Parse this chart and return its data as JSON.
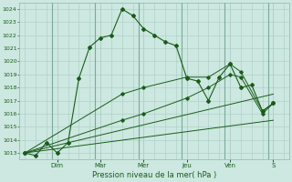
{
  "title": "Pression niveau de la mer( hPa )",
  "bg_color": "#cce8e0",
  "grid_color": "#aaccc4",
  "line_color": "#1a5c1a",
  "ylim": [
    1012.5,
    1024.5
  ],
  "yticks": [
    1013,
    1014,
    1015,
    1016,
    1017,
    1018,
    1019,
    1020,
    1021,
    1022,
    1023,
    1024
  ],
  "day_labels": [
    "Dim",
    "Mar",
    "Mer",
    "Jeu",
    "Ven",
    "S"
  ],
  "day_positions": [
    3,
    7,
    11,
    15,
    19,
    23
  ],
  "xlim": [
    -0.5,
    24.5
  ],
  "series_main": [
    [
      0,
      1013.0
    ],
    [
      1,
      1012.8
    ],
    [
      2,
      1013.8
    ],
    [
      3,
      1013.0
    ],
    [
      4,
      1013.8
    ],
    [
      5,
      1018.7
    ],
    [
      6,
      1021.1
    ],
    [
      7,
      1021.8
    ],
    [
      8,
      1022.0
    ],
    [
      9,
      1024.0
    ],
    [
      10,
      1023.5
    ],
    [
      11,
      1022.5
    ],
    [
      12,
      1022.0
    ],
    [
      13,
      1021.5
    ],
    [
      14,
      1021.2
    ],
    [
      15,
      1018.7
    ],
    [
      16,
      1018.5
    ],
    [
      17,
      1017.0
    ],
    [
      18,
      1018.8
    ],
    [
      19,
      1019.8
    ],
    [
      20,
      1018.0
    ],
    [
      21,
      1018.2
    ],
    [
      22,
      1016.2
    ],
    [
      23,
      1016.8
    ]
  ],
  "series_upper": [
    [
      0,
      1013.0
    ],
    [
      9,
      1017.5
    ],
    [
      11,
      1018.0
    ],
    [
      15,
      1018.8
    ],
    [
      17,
      1018.8
    ],
    [
      19,
      1019.8
    ],
    [
      20,
      1019.2
    ],
    [
      22,
      1016.2
    ],
    [
      23,
      1016.8
    ]
  ],
  "series_lower": [
    [
      0,
      1013.0
    ],
    [
      9,
      1015.5
    ],
    [
      11,
      1016.0
    ],
    [
      15,
      1017.2
    ],
    [
      17,
      1018.0
    ],
    [
      19,
      1019.0
    ],
    [
      20,
      1018.8
    ],
    [
      22,
      1016.0
    ],
    [
      23,
      1016.8
    ]
  ],
  "series_trend_upper": [
    [
      0,
      1013.0
    ],
    [
      23,
      1017.5
    ]
  ],
  "series_trend_lower": [
    [
      0,
      1013.0
    ],
    [
      23,
      1015.5
    ]
  ]
}
